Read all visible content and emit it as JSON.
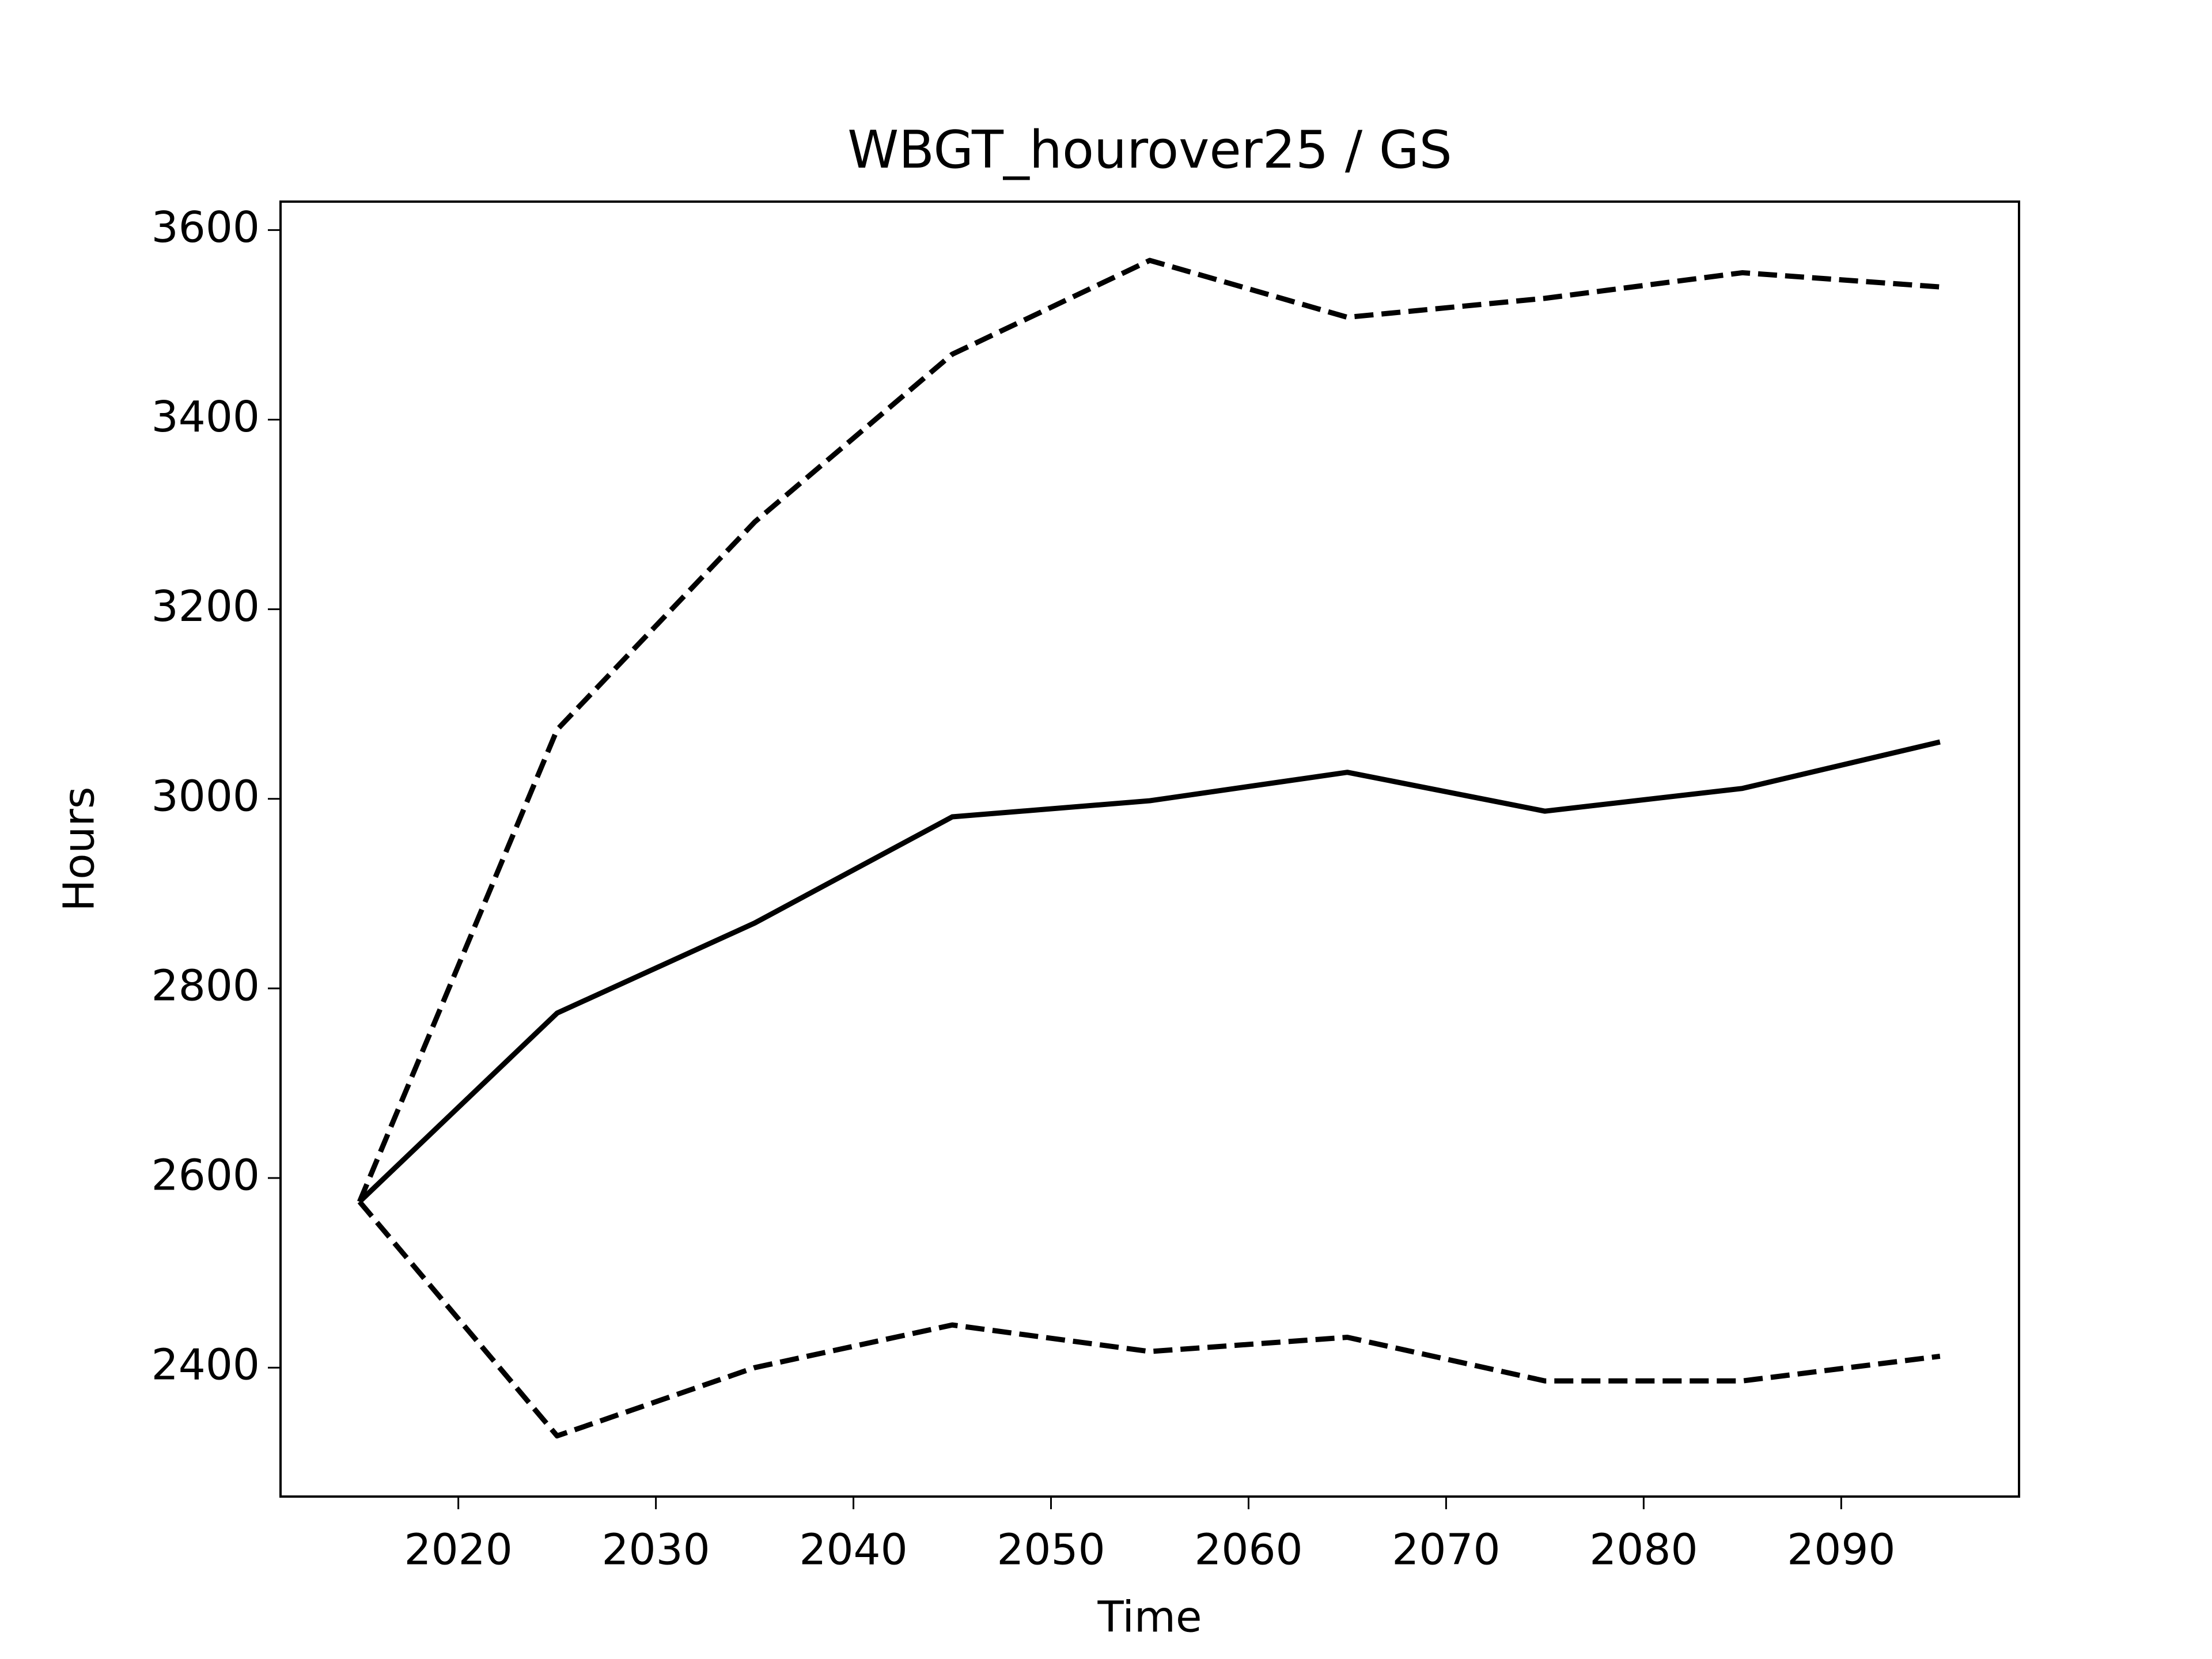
{
  "chart_data": {
    "type": "line",
    "title": "WBGT_hourover25 / GS",
    "xlabel": "Time",
    "ylabel": "Hours",
    "x": [
      2015,
      2025,
      2035,
      2045,
      2055,
      2065,
      2075,
      2085,
      2095
    ],
    "series": [
      {
        "color": "#000000",
        "linestyle": "solid",
        "values": [
          2575,
          2774,
          2869,
          2981,
          2998,
          3028,
          2987,
          3011,
          3060
        ]
      },
      {
        "color": "#000000",
        "linestyle": "dashed",
        "values": [
          2575,
          3073,
          3292,
          3469,
          3568,
          3508,
          3528,
          3555,
          3540
        ]
      },
      {
        "color": "#000000",
        "linestyle": "dashed",
        "values": [
          2575,
          2328,
          2400,
          2445,
          2417,
          2432,
          2386,
          2386,
          2412
        ]
      }
    ],
    "xlim": [
      2011,
      2099
    ],
    "xticks": [
      2020,
      2030,
      2040,
      2050,
      2060,
      2070,
      2080,
      2090
    ],
    "ylim": [
      2264,
      3630
    ],
    "yticks": [
      2400,
      2600,
      2800,
      3000,
      3200,
      3400,
      3600
    ],
    "grid": false
  }
}
